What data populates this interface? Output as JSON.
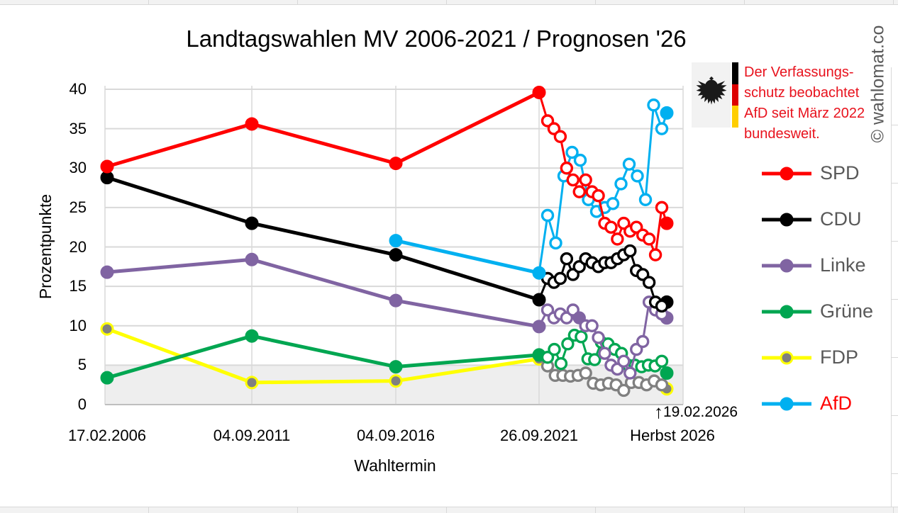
{
  "watermark": {
    "text": "© wahlomat.co"
  },
  "note": {
    "icon": "bundesadler",
    "flag_colors": [
      "#000000",
      "#dd0000",
      "#ffce00"
    ],
    "text_color": "#e8121d",
    "lines": [
      "Der Verfassungs-",
      "schutz beobachtet",
      "AfD seit März 2022",
      "bundesweit."
    ]
  },
  "annotation": {
    "arrow": "↑",
    "label": "19.02.2026"
  },
  "chart_data": {
    "type": "line",
    "title": "Landtagswahlen MV 2006-2021 / Prognosen '26",
    "xlabel": "Wahltermin",
    "ylabel": "Prozentpunkte",
    "ylim": [
      0,
      40
    ],
    "yticks": [
      0,
      5,
      10,
      15,
      20,
      25,
      30,
      35,
      40
    ],
    "categories": [
      "17.02.2006",
      "04.09.2011",
      "04.09.2016",
      "26.09.2021",
      "Herbst 2026"
    ],
    "grid": true,
    "legend_position": "right",
    "threshold_band": {
      "from": 0,
      "to": 5,
      "color": "#eeeeee"
    },
    "marker_styles": {
      "election": "filled",
      "poll": "open-circle",
      "prognosis": "filled"
    },
    "series": [
      {
        "name": "SPD",
        "color": "#ff0000",
        "label_color": "#595959",
        "elections": [
          30.2,
          35.6,
          30.6,
          39.6
        ],
        "polls": [
          36,
          35,
          34,
          30,
          28.5,
          27,
          28.5,
          27,
          26.5,
          23,
          22.5,
          21,
          23,
          22,
          22.5,
          21.5,
          21,
          19,
          25
        ],
        "prognosis": 23
      },
      {
        "name": "CDU",
        "color": "#000000",
        "label_color": "#595959",
        "elections": [
          28.8,
          23.0,
          19.0,
          13.3
        ],
        "polls": [
          16,
          15.5,
          16,
          18.5,
          16.5,
          17.5,
          18.5,
          18,
          17.5,
          18,
          18,
          18.5,
          19,
          19.5,
          17,
          16.5,
          15.5,
          13,
          12.5
        ],
        "prognosis": 13
      },
      {
        "name": "Linke",
        "color": "#8064a2",
        "label_color": "#595959",
        "elections": [
          16.8,
          18.4,
          13.2,
          9.9
        ],
        "polls": [
          12,
          11,
          11.5,
          11,
          12,
          11,
          10,
          10,
          8.5,
          6.5,
          5,
          4.5,
          5.5,
          4,
          7,
          8,
          13,
          12,
          11.5
        ],
        "filled_poll_index": 5,
        "prognosis": 11
      },
      {
        "name": "Grüne",
        "color": "#00a651",
        "label_color": "#595959",
        "elections": [
          3.4,
          8.7,
          4.8,
          6.3
        ],
        "polls": [
          6,
          7,
          5.2,
          7.7,
          8.8,
          8.6,
          5.8,
          5.7,
          7.9,
          7.7,
          7,
          6.5,
          5,
          5,
          4.8,
          5,
          4.9,
          5.5
        ],
        "prognosis": 4
      },
      {
        "name": "FDP",
        "color": "#ffff00",
        "marker_color": "#808080",
        "poll_color": "#808080",
        "label_color": "#595959",
        "elections": [
          9.6,
          2.8,
          3.0,
          5.8
        ],
        "polls": [
          4.9,
          3.7,
          3.7,
          3.6,
          3.7,
          4,
          2.7,
          2.5,
          2.7,
          2.5,
          1.8,
          2.8,
          2.8,
          2.5,
          3,
          2.5
        ],
        "prognosis": 2
      },
      {
        "name": "AfD",
        "color": "#00b0f0",
        "label_color": "#ff0000",
        "elections": [
          null,
          null,
          20.8,
          16.7
        ],
        "polls": [
          24,
          20.5,
          29,
          32,
          31,
          26,
          24.5,
          25,
          25.5,
          28,
          30.5,
          29,
          26,
          38,
          35
        ],
        "prognosis": 37
      }
    ]
  }
}
